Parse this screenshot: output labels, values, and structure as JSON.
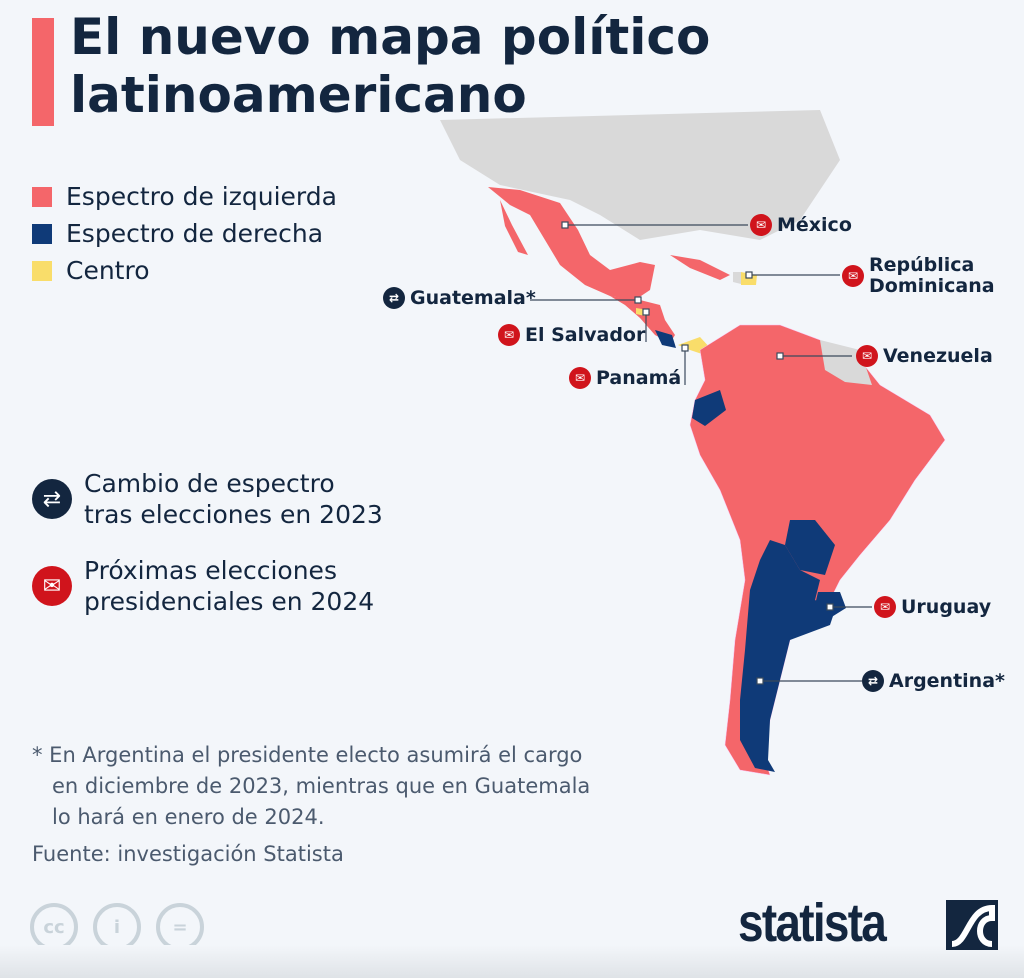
{
  "title": "El nuevo mapa político latinoamericano",
  "legend": [
    {
      "label": "Espectro de izquierda",
      "color": "#f4666a"
    },
    {
      "label": "Espectro de derecha",
      "color": "#0f3a78"
    },
    {
      "label": "Centro",
      "color": "#f9dd6a"
    }
  ],
  "symbols": {
    "swap": "Cambio de espectro tras elecciones en 2023",
    "swap_l1": "Cambio de espectro",
    "swap_l2": "tras elecciones en 2023",
    "vote_l1": "Próximas elecciones",
    "vote_l2": "presidenciales en 2024"
  },
  "countries": {
    "mexico": {
      "name": "México",
      "spectrum": "izquierda",
      "icon": "ballot-box-icon"
    },
    "dominicana": {
      "name1": "República",
      "name2": "Dominicana",
      "spectrum": "centro",
      "icon": "ballot-box-icon"
    },
    "guatemala": {
      "name": "Guatemala*",
      "spectrum": "izquierda",
      "icon": "swap-arrows-icon"
    },
    "salvador": {
      "name": "El Salvador",
      "spectrum": "centro",
      "icon": "ballot-box-icon"
    },
    "panama": {
      "name": "Panamá",
      "spectrum": "centro",
      "icon": "ballot-box-icon"
    },
    "venezuela": {
      "name": "Venezuela",
      "spectrum": "izquierda",
      "icon": "ballot-box-icon"
    },
    "uruguay": {
      "name": "Uruguay",
      "spectrum": "derecha",
      "icon": "ballot-box-icon"
    },
    "argentina": {
      "name": "Argentina*",
      "spectrum": "derecha",
      "icon": "swap-arrows-icon"
    }
  },
  "note": {
    "l1": "* En Argentina el presidente electo asumirá el cargo",
    "l2": "en diciembre de 2023, mientras que en Guatemala",
    "l3": "lo hará en enero de 2024."
  },
  "source": "Fuente: investigación Statista",
  "brand": "statista",
  "license_icons": [
    "cc",
    "by",
    "nd"
  ]
}
